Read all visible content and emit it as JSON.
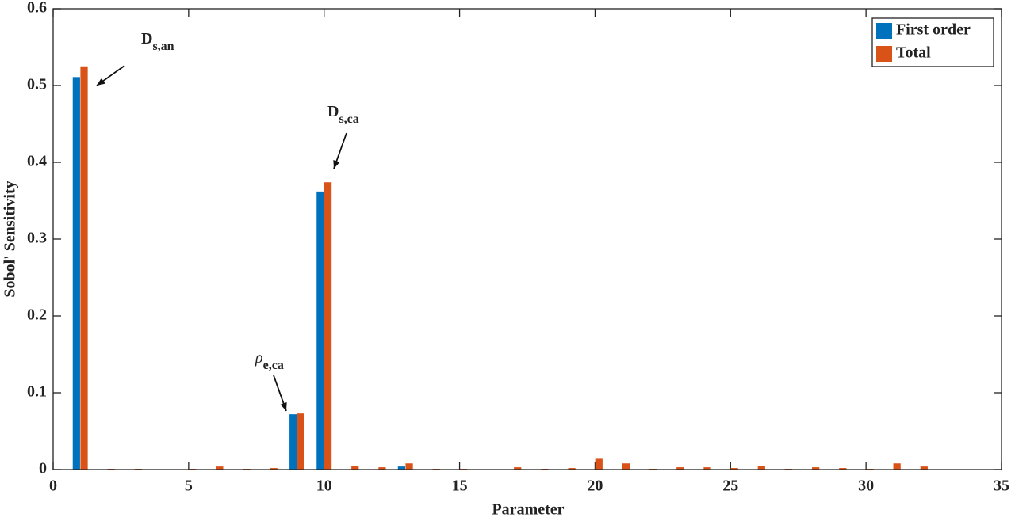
{
  "chart_data": {
    "type": "bar",
    "x_label": "Parameter",
    "y_label": "Sobol' Sensitivity",
    "x": [
      1,
      2,
      3,
      4,
      5,
      6,
      7,
      8,
      9,
      10,
      11,
      12,
      13,
      14,
      15,
      16,
      17,
      18,
      19,
      20,
      21,
      22,
      23,
      24,
      25,
      26,
      27,
      28,
      29,
      30,
      31,
      32
    ],
    "series": [
      {
        "name": "First order",
        "color": "#0072BD",
        "values": [
          0.511,
          0,
          0,
          0,
          0,
          0,
          0,
          0,
          0.072,
          0.362,
          0,
          0,
          0.004,
          0,
          0,
          0,
          0,
          0,
          0,
          0,
          0,
          0,
          0,
          0,
          0,
          0,
          0,
          0,
          0,
          0,
          0,
          0
        ]
      },
      {
        "name": "Total",
        "color": "#D95319",
        "values": [
          0.525,
          0.001,
          0.001,
          0,
          0.001,
          0.004,
          0.001,
          0.002,
          0.073,
          0.374,
          0.005,
          0.003,
          0.008,
          0.001,
          0.001,
          0,
          0.003,
          0.001,
          0.002,
          0.014,
          0.008,
          0.001,
          0.003,
          0.003,
          0.002,
          0.005,
          0.001,
          0.003,
          0.002,
          0.001,
          0.008,
          0.004
        ]
      }
    ],
    "xlim": [
      0,
      35
    ],
    "xticks": [
      0,
      5,
      10,
      15,
      20,
      25,
      30,
      35
    ],
    "ylim": [
      0,
      0.6
    ],
    "yticks": [
      0,
      0.1,
      0.2,
      0.3,
      0.4,
      0.5,
      0.6
    ],
    "legend": "upper right",
    "annotations": [
      {
        "text": "D",
        "sub": "s,an"
      },
      {
        "text": "D",
        "sub": "s,ca"
      },
      {
        "text": "ρ",
        "sub": "e,ca"
      }
    ]
  }
}
